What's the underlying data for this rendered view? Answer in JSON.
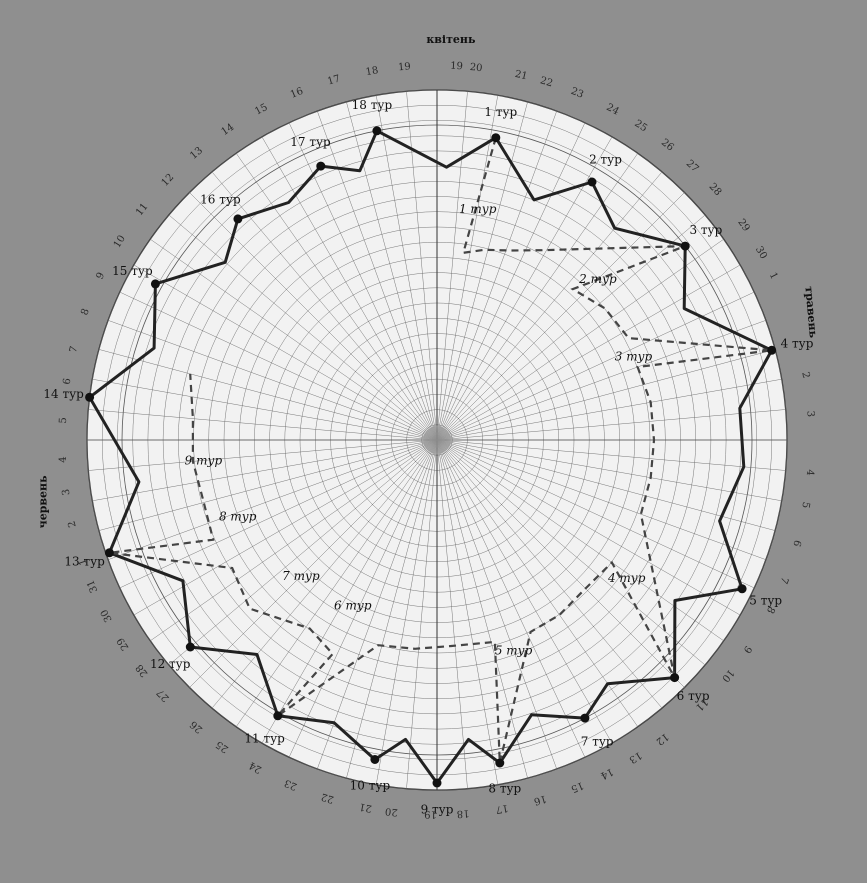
{
  "chart_data": {
    "type": "polar-line",
    "colors": {
      "background": "#8f8f8f",
      "disc": "#f2f2f2",
      "grid": "#6a6a6a",
      "solid_line": "#222222",
      "dashed_line": "#444444"
    },
    "month_labels": [
      "квітень",
      "травень",
      "червень"
    ],
    "tours": [
      {
        "label": "1 тур",
        "angle": 11,
        "r": 0.88
      },
      {
        "label": "2 тур",
        "angle": 31,
        "r": 0.86
      },
      {
        "label": "3 тур",
        "angle": 52,
        "r": 0.9
      },
      {
        "label": "4 тур",
        "angle": 75,
        "r": 0.99
      },
      {
        "label": "5 тур",
        "angle": 116,
        "r": 0.97
      },
      {
        "label": "6 тур",
        "angle": 135,
        "r": 0.96
      },
      {
        "label": "7 тур",
        "angle": 152,
        "r": 0.9
      },
      {
        "label": "8 тур",
        "angle": 169,
        "r": 0.94
      },
      {
        "label": "9 тур",
        "angle": 180,
        "r": 0.98
      },
      {
        "label": "10 тур",
        "angle": 191,
        "r": 0.93
      },
      {
        "label": "11 тур",
        "angle": 210,
        "r": 0.91
      },
      {
        "label": "12 тур",
        "angle": 230,
        "r": 0.92
      },
      {
        "label": "13 тур",
        "angle": 251,
        "r": 0.99
      },
      {
        "label": "14 тур",
        "angle": 277,
        "r": 1.0
      },
      {
        "label": "15 тур",
        "angle": 299,
        "r": 0.92
      },
      {
        "label": "16 тур",
        "angle": 318,
        "r": 0.85
      },
      {
        "label": "17 тур",
        "angle": 337,
        "r": 0.85
      },
      {
        "label": "18 тур",
        "angle": 349,
        "r": 0.9
      }
    ],
    "solid_path": [
      {
        "angle": 11,
        "r": 0.88
      },
      {
        "angle": 22,
        "r": 0.74
      },
      {
        "angle": 31,
        "r": 0.86
      },
      {
        "angle": 40,
        "r": 0.79
      },
      {
        "angle": 52,
        "r": 0.9
      },
      {
        "angle": 62,
        "r": 0.8
      },
      {
        "angle": 75,
        "r": 0.99
      },
      {
        "angle": 84,
        "r": 0.87
      },
      {
        "angle": 95,
        "r": 0.88
      },
      {
        "angle": 106,
        "r": 0.84
      },
      {
        "angle": 116,
        "r": 0.97
      },
      {
        "angle": 124,
        "r": 0.82
      },
      {
        "angle": 135,
        "r": 0.96
      },
      {
        "angle": 145,
        "r": 0.85
      },
      {
        "angle": 152,
        "r": 0.9
      },
      {
        "angle": 161,
        "r": 0.83
      },
      {
        "angle": 169,
        "r": 0.94
      },
      {
        "angle": 174,
        "r": 0.86
      },
      {
        "angle": 180,
        "r": 0.98
      },
      {
        "angle": 186,
        "r": 0.86
      },
      {
        "angle": 191,
        "r": 0.93
      },
      {
        "angle": 200,
        "r": 0.86
      },
      {
        "angle": 210,
        "r": 0.91
      },
      {
        "angle": 220,
        "r": 0.8
      },
      {
        "angle": 230,
        "r": 0.92
      },
      {
        "angle": 241,
        "r": 0.83
      },
      {
        "angle": 251,
        "r": 0.99
      },
      {
        "angle": 262,
        "r": 0.86
      },
      {
        "angle": 277,
        "r": 1.0
      },
      {
        "angle": 288,
        "r": 0.85
      },
      {
        "angle": 299,
        "r": 0.92
      },
      {
        "angle": 310,
        "r": 0.79
      },
      {
        "angle": 318,
        "r": 0.85
      },
      {
        "angle": 328,
        "r": 0.8
      },
      {
        "angle": 337,
        "r": 0.85
      },
      {
        "angle": 344,
        "r": 0.8
      },
      {
        "angle": 349,
        "r": 0.9
      },
      {
        "angle": 2,
        "r": 0.78
      }
    ],
    "dashed_path": [
      {
        "angle": 11,
        "r": 0.88
      },
      {
        "angle": 8,
        "r": 0.54
      },
      {
        "angle": 14,
        "r": 0.56
      },
      {
        "angle": 21,
        "r": 0.58
      },
      {
        "angle": 29,
        "r": 0.62
      },
      {
        "angle": 52,
        "r": 0.9
      },
      {
        "angle": 42,
        "r": 0.58
      },
      {
        "angle": 52,
        "r": 0.61
      },
      {
        "angle": 62,
        "r": 0.62
      },
      {
        "angle": 75,
        "r": 0.99
      },
      {
        "angle": 70,
        "r": 0.61
      },
      {
        "angle": 80,
        "r": 0.62
      },
      {
        "angle": 90,
        "r": 0.62
      },
      {
        "angle": 100,
        "r": 0.62
      },
      {
        "angle": 110,
        "r": 0.62
      },
      {
        "angle": 135,
        "r": 0.96
      },
      {
        "angle": 125,
        "r": 0.61
      },
      {
        "angle": 135,
        "r": 0.6
      },
      {
        "angle": 145,
        "r": 0.61
      },
      {
        "angle": 154,
        "r": 0.61
      },
      {
        "angle": 169,
        "r": 0.94
      },
      {
        "angle": 164,
        "r": 0.6
      },
      {
        "angle": 176,
        "r": 0.59
      },
      {
        "angle": 186,
        "r": 0.6
      },
      {
        "angle": 196,
        "r": 0.61
      },
      {
        "angle": 210,
        "r": 0.91
      },
      {
        "angle": 206,
        "r": 0.68
      },
      {
        "angle": 214,
        "r": 0.65
      },
      {
        "angle": 228,
        "r": 0.72
      },
      {
        "angle": 238,
        "r": 0.69
      },
      {
        "angle": 251,
        "r": 0.99
      },
      {
        "angle": 246,
        "r": 0.7
      },
      {
        "angle": 256,
        "r": 0.69
      },
      {
        "angle": 265,
        "r": 0.7
      },
      {
        "angle": 275,
        "r": 0.7
      },
      {
        "angle": 285,
        "r": 0.73
      }
    ],
    "dashed_labels": [
      {
        "label": "1 тур",
        "angle": 10,
        "r": 0.67
      },
      {
        "label": "2 тур",
        "angle": 45,
        "r": 0.65
      },
      {
        "label": "3 тур",
        "angle": 67,
        "r": 0.61
      },
      {
        "label": "4 тур",
        "angle": 126,
        "r": 0.67
      },
      {
        "label": "5 тур",
        "angle": 160,
        "r": 0.64
      },
      {
        "label": "6 тур",
        "angle": 207,
        "r": 0.53
      },
      {
        "label": "7 тур",
        "angle": 225,
        "r": 0.55
      },
      {
        "label": "8 тур",
        "angle": 249,
        "r": 0.61
      },
      {
        "label": "9 тур",
        "angle": 265,
        "r": 0.67
      }
    ],
    "date_ticks": [
      {
        "text": "19",
        "angle": 3
      },
      {
        "text": "20",
        "angle": 6
      },
      {
        "text": "21",
        "angle": 13
      },
      {
        "text": "22",
        "angle": 17
      },
      {
        "text": "23",
        "angle": 22
      },
      {
        "text": "24",
        "angle": 28
      },
      {
        "text": "25",
        "angle": 33
      },
      {
        "text": "26",
        "angle": 38
      },
      {
        "text": "27",
        "angle": 43
      },
      {
        "text": "28",
        "angle": 48
      },
      {
        "text": "29",
        "angle": 55
      },
      {
        "text": "30",
        "angle": 60
      },
      {
        "text": "1",
        "angle": 64
      },
      {
        "text": "2",
        "angle": 80
      },
      {
        "text": "3",
        "angle": 86
      },
      {
        "text": "4",
        "angle": 95
      },
      {
        "text": "5",
        "angle": 100
      },
      {
        "text": "6",
        "angle": 106
      },
      {
        "text": "7",
        "angle": 112
      },
      {
        "text": "8",
        "angle": 117
      },
      {
        "text": "9",
        "angle": 124
      },
      {
        "text": "10",
        "angle": 129
      },
      {
        "text": "11",
        "angle": 135
      },
      {
        "text": "12",
        "angle": 143
      },
      {
        "text": "13",
        "angle": 148
      },
      {
        "text": "14",
        "angle": 153
      },
      {
        "text": "15",
        "angle": 158
      },
      {
        "text": "16",
        "angle": 164
      },
      {
        "text": "17",
        "angle": 170
      },
      {
        "text": "18",
        "angle": 176
      },
      {
        "text": "19",
        "angle": 181
      },
      {
        "text": "20",
        "angle": 187
      },
      {
        "text": "21",
        "angle": 191
      },
      {
        "text": "22",
        "angle": 197
      },
      {
        "text": "23",
        "angle": 203
      },
      {
        "text": "24",
        "angle": 209
      },
      {
        "text": "25",
        "angle": 215
      },
      {
        "text": "26",
        "angle": 220
      },
      {
        "text": "27",
        "angle": 227
      },
      {
        "text": "28",
        "angle": 232
      },
      {
        "text": "29",
        "angle": 237
      },
      {
        "text": "30",
        "angle": 242
      },
      {
        "text": "31",
        "angle": 247
      },
      {
        "text": "1",
        "angle": 251
      },
      {
        "text": "2",
        "angle": 257
      },
      {
        "text": "3",
        "angle": 262
      },
      {
        "text": "4",
        "angle": 267
      },
      {
        "text": "5",
        "angle": 273
      },
      {
        "text": "6",
        "angle": 279
      },
      {
        "text": "7",
        "angle": 284
      },
      {
        "text": "8",
        "angle": 290
      },
      {
        "text": "9",
        "angle": 296
      },
      {
        "text": "10",
        "angle": 302
      },
      {
        "text": "11",
        "angle": 308
      },
      {
        "text": "12",
        "angle": 314
      },
      {
        "text": "13",
        "angle": 320
      },
      {
        "text": "14",
        "angle": 326
      },
      {
        "text": "15",
        "angle": 332
      },
      {
        "text": "16",
        "angle": 338
      },
      {
        "text": "17",
        "angle": 344
      },
      {
        "text": "18",
        "angle": 350
      },
      {
        "text": "19",
        "angle": 355
      }
    ]
  }
}
